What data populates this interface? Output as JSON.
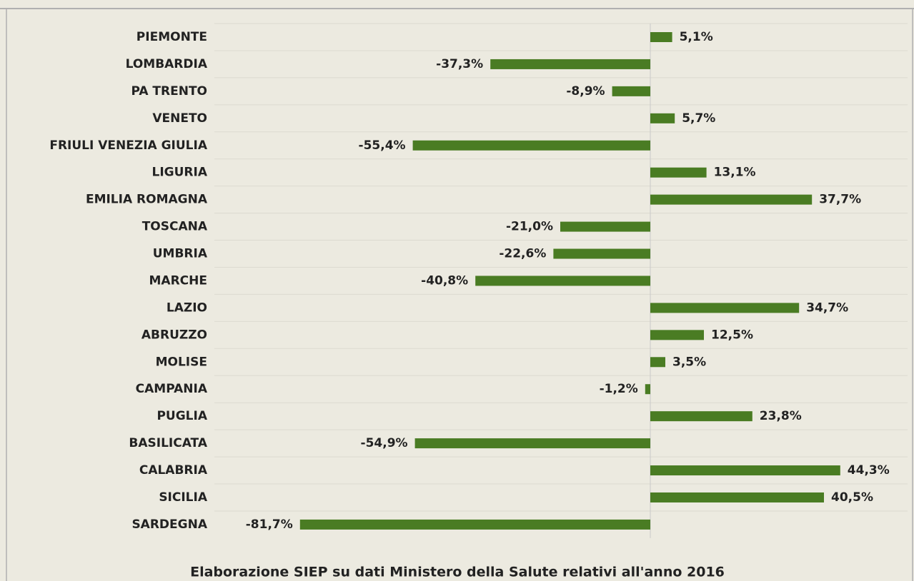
{
  "chart_data": {
    "type": "bar",
    "orientation": "horizontal",
    "categories": [
      "PIEMONTE",
      "LOMBARDIA",
      "PA TRENTO",
      "VENETO",
      "FRIULI VENEZIA GIULIA",
      "LIGURIA",
      "EMILIA ROMAGNA",
      "TOSCANA",
      "UMBRIA",
      "MARCHE",
      "LAZIO",
      "ABRUZZO",
      "MOLISE",
      "CAMPANIA",
      "PUGLIA",
      "BASILICATA",
      "CALABRIA",
      "SICILIA",
      "SARDEGNA"
    ],
    "values": [
      5.1,
      -37.3,
      -8.9,
      5.7,
      -55.4,
      13.1,
      37.7,
      -21.0,
      -22.6,
      -40.8,
      34.7,
      12.5,
      3.5,
      -1.2,
      23.8,
      -54.9,
      44.3,
      40.5,
      -81.7
    ],
    "value_labels": [
      "5,1%",
      "-37,3%",
      "-8,9%",
      "5,7%",
      "-55,4%",
      "13,1%",
      "37,7%",
      "-21,0%",
      "-22,6%",
      "-40,8%",
      "34,7%",
      "12,5%",
      "3,5%",
      "-1,2%",
      "23,8%",
      "-54,9%",
      "44,3%",
      "40,5%",
      "-81,7%"
    ],
    "color": "#4a7c23",
    "xlim": [
      -100,
      60
    ],
    "note": "Elaborazione SIEP su dati Ministero della Salute relativi all'anno 2016"
  }
}
